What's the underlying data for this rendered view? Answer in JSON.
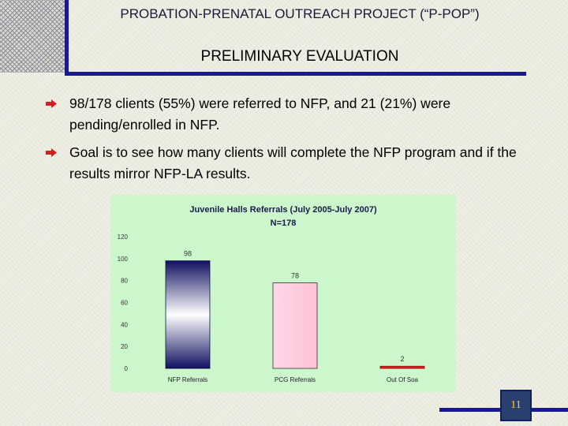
{
  "header": {
    "title": "PROBATION-PRENATAL OUTREACH PROJECT (“P-POP”)",
    "subtitle": "PRELIMINARY EVALUATION"
  },
  "bullets": [
    {
      "text": "98/178 clients (55%) were referred to NFP, and 21 (21%) were pending/enrolled in NFP."
    },
    {
      "text": "Goal is to see how many clients will complete the NFP program and if the results mirror NFP-LA results."
    }
  ],
  "page_number": "11",
  "colors": {
    "accent": "#1a1a8c",
    "bullet_arrow": "#cc2222",
    "chart_bg": "#ccf7cc",
    "bar_1": "#1a1a6e",
    "bar_2": "#ffccdd",
    "bar_3": "#dd2222"
  },
  "chart_data": {
    "type": "bar",
    "title": "Juvenile Halls Referrals (July 2005-July 2007)",
    "subtitle": "N=178",
    "categories": [
      "NFP Referrals",
      "PCG Referrals",
      "Out Of Soa"
    ],
    "values": [
      98,
      78,
      2
    ],
    "value_labels": [
      "98",
      "78",
      "2"
    ],
    "ylim": [
      0,
      120
    ],
    "yticks": [
      "0",
      "20",
      "40",
      "60",
      "80",
      "100",
      "120"
    ],
    "grid": false,
    "legend": "none"
  }
}
